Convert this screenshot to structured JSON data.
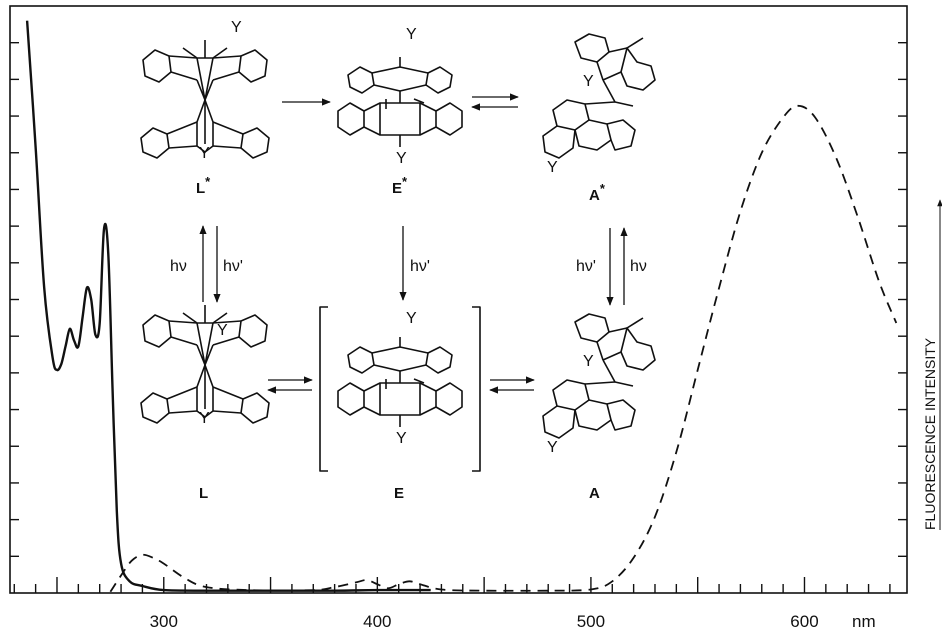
{
  "chart_data": {
    "type": "line",
    "xlabel_unit": "nm",
    "xlim": [
      228,
      648
    ],
    "x_ticks": [
      300,
      400,
      500,
      600
    ],
    "right_axis_label": "FLUORESCENCE INTENSITY",
    "ylim": [
      0,
      1
    ],
    "series": [
      {
        "style": "solid",
        "x": [
          236,
          240,
          244,
          248,
          250,
          252,
          254,
          256,
          258,
          260,
          262,
          264,
          266,
          268,
          270,
          272,
          274,
          276,
          278,
          280,
          284,
          290,
          300,
          320,
          350,
          380,
          400,
          425
        ],
        "y": [
          0.975,
          0.76,
          0.52,
          0.4,
          0.38,
          0.39,
          0.42,
          0.45,
          0.43,
          0.42,
          0.47,
          0.52,
          0.5,
          0.44,
          0.46,
          0.62,
          0.58,
          0.35,
          0.14,
          0.05,
          0.02,
          0.012,
          0.005,
          0.004,
          0.004,
          0.004,
          0.005,
          0.005
        ]
      },
      {
        "style": "dashed",
        "x": [
          275,
          280,
          285,
          290,
          295,
          300,
          310,
          320,
          340,
          370,
          380,
          390,
          395,
          400,
          405,
          410,
          415,
          420,
          430,
          450,
          480,
          500,
          510,
          520,
          530,
          540,
          550,
          560,
          570,
          580,
          590,
          597,
          605,
          615,
          625,
          635,
          643
        ],
        "y": [
          0.002,
          0.03,
          0.055,
          0.065,
          0.06,
          0.05,
          0.025,
          0.01,
          0.005,
          0.005,
          0.01,
          0.018,
          0.022,
          0.015,
          0.008,
          0.015,
          0.02,
          0.015,
          0.006,
          0.004,
          0.004,
          0.006,
          0.02,
          0.06,
          0.13,
          0.24,
          0.38,
          0.52,
          0.65,
          0.75,
          0.81,
          0.83,
          0.81,
          0.74,
          0.64,
          0.53,
          0.46
        ]
      }
    ]
  },
  "scheme": {
    "species": [
      {
        "id": "L*",
        "base": "L",
        "mark": "*"
      },
      {
        "id": "E*",
        "base": "E",
        "mark": "*"
      },
      {
        "id": "A*",
        "base": "A",
        "mark": "*"
      },
      {
        "id": "L",
        "base": "L",
        "mark": ""
      },
      {
        "id": "E",
        "base": "E",
        "mark": ""
      },
      {
        "id": "A",
        "base": "A",
        "mark": ""
      }
    ],
    "substituent": "Y",
    "transitions": {
      "L_excite": "hν",
      "L_emit": "hν'",
      "E_emit": "hν'",
      "A_emit": "hν'",
      "A_excite": "hν"
    }
  }
}
